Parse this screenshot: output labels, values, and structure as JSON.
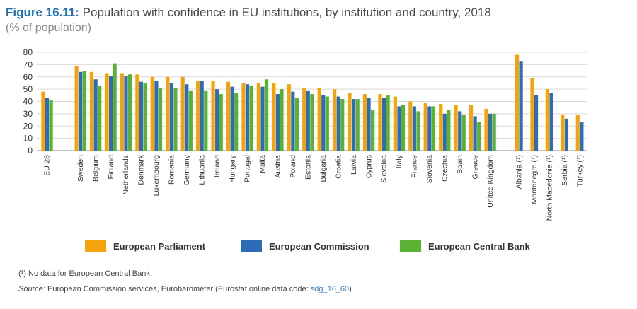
{
  "figure": {
    "label": "Figure 16.11:",
    "title": "Population with confidence in EU institutions, by institution and country, 2018",
    "subtitle": "(% of population)"
  },
  "chart_data": {
    "type": "bar",
    "ylim": [
      0,
      80
    ],
    "yticks": [
      0,
      10,
      20,
      30,
      40,
      50,
      60,
      70,
      80
    ],
    "grid": true,
    "legend_position": "bottom",
    "categories": [
      "EU-28",
      "Sweden",
      "Belgium",
      "Finland",
      "Netherlands",
      "Denmark",
      "Luxembourg",
      "Romania",
      "Germany",
      "Lithuania",
      "Ireland",
      "Hungary",
      "Portugal",
      "Malta",
      "Austria",
      "Poland",
      "Estonia",
      "Bulgaria",
      "Croatia",
      "Latvia",
      "Cyprus",
      "Slovakia",
      "Italy",
      "France",
      "Slovenia",
      "Czechia",
      "Spain",
      "Greece",
      "United Kingdom",
      "Albania (¹)",
      "Montenegro (¹)",
      "North Macedonia (¹)",
      "Serbia (¹)",
      "Turkey (¹)"
    ],
    "series": [
      {
        "name": "European Parliament",
        "color": "#f5a30c",
        "values": [
          48,
          69,
          64,
          63,
          63,
          62,
          60,
          60,
          60,
          57,
          57,
          56,
          55,
          55,
          55,
          54,
          51,
          51,
          50,
          47,
          46,
          46,
          44,
          40,
          39,
          38,
          37,
          37,
          34,
          78,
          59,
          50,
          29,
          29
        ]
      },
      {
        "name": "European Commission",
        "color": "#2e6db5",
        "values": [
          43,
          64,
          58,
          61,
          61,
          56,
          57,
          55,
          54,
          57,
          50,
          52,
          54,
          52,
          46,
          48,
          49,
          45,
          44,
          42,
          43,
          43,
          36,
          36,
          36,
          30,
          32,
          28,
          30,
          73,
          45,
          47,
          26,
          23
        ]
      },
      {
        "name": "European Central Bank",
        "color": "#5ab233",
        "values": [
          41,
          65,
          53,
          71,
          62,
          55,
          51,
          51,
          49,
          49,
          46,
          47,
          53,
          58,
          50,
          43,
          46,
          44,
          42,
          42,
          33,
          45,
          37,
          32,
          36,
          33,
          29,
          23,
          30,
          null,
          null,
          null,
          null,
          null
        ]
      }
    ]
  },
  "footnotes": {
    "note": "(¹) No data for European Central Bank.",
    "source_label": "Source:",
    "source_text": " European Commission services, Eurobarometer (Eurostat online data code: ",
    "source_code": "sdg_16_60",
    "source_end": ")"
  }
}
